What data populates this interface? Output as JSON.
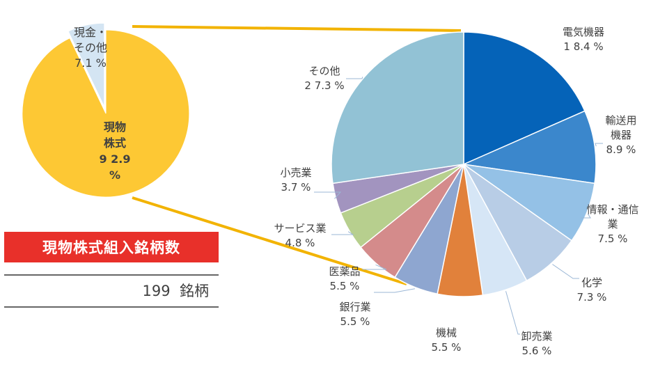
{
  "summary": {
    "title": "現物株式組入銘柄数",
    "count": "199",
    "unit": "銘柄"
  },
  "chart_data": [
    {
      "type": "pie",
      "chart": "asset-allocation",
      "series": [
        {
          "label_lines": [
            "現物",
            "株式",
            "9 2.9",
            "%"
          ],
          "value": 92.9,
          "color": "#fdc834"
        },
        {
          "label_lines": [
            "現金・",
            "その他",
            "7.1 %"
          ],
          "value": 7.1,
          "color": "#d4e5f3"
        }
      ]
    },
    {
      "type": "pie",
      "chart": "sector-breakdown",
      "series": [
        {
          "label_lines": [
            "電気機器",
            "1 8.4 %"
          ],
          "value": 18.4,
          "color": "#0563b8"
        },
        {
          "label_lines": [
            "輸送用",
            "機器",
            "8.9 %"
          ],
          "value": 8.9,
          "color": "#3b87cc"
        },
        {
          "label_lines": [
            "情報・通信",
            "業",
            "7.5 %"
          ],
          "value": 7.5,
          "color": "#94c1e6"
        },
        {
          "label_lines": [
            "化学",
            "7.3 %"
          ],
          "value": 7.3,
          "color": "#b8cde6"
        },
        {
          "label_lines": [
            "卸売業",
            "5.6 %"
          ],
          "value": 5.6,
          "color": "#d6e6f6"
        },
        {
          "label_lines": [
            "機械",
            "5.5 %"
          ],
          "value": 5.5,
          "color": "#e1813b"
        },
        {
          "label_lines": [
            "銀行業",
            "5.5 %"
          ],
          "value": 5.5,
          "color": "#8ea6d0"
        },
        {
          "label_lines": [
            "医薬品",
            "5.5 %"
          ],
          "value": 5.5,
          "color": "#d48b8b"
        },
        {
          "label_lines": [
            "サービス業",
            "4.8 %"
          ],
          "value": 4.8,
          "color": "#b7cf8e"
        },
        {
          "label_lines": [
            "小売業",
            "3.7 %"
          ],
          "value": 3.7,
          "color": "#a294bf"
        },
        {
          "label_lines": [
            "その他",
            "2 7.3 %"
          ],
          "value": 27.3,
          "color": "#92c2d5"
        }
      ]
    }
  ]
}
